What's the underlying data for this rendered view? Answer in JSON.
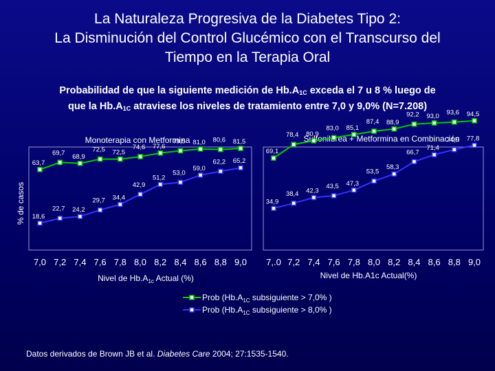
{
  "title": {
    "line1": "La Naturaleza Progresiva de la Diabetes Tipo 2:",
    "line2": "La Disminución del Control Glucémico con el Transcurso del",
    "line3": "Tiempo en la Terapia Oral"
  },
  "subtitle": {
    "p1": "Probabilidad de que la siguiente medición de Hb.A",
    "sub1": "1C",
    "p2": " exceda el 7 u 8 % luego de",
    "p3": "que la Hb.A",
    "sub2": "1C",
    "p4": " atraviese los niveles de tratamiento entre 7,0 y 9,0% (N=7.208)"
  },
  "ylabel": "% de casos",
  "legend": {
    "s1_pre": "Prob (Hb.A",
    "s1_sub": "1C",
    "s1_post": " subsiguiente > 7,0% )",
    "s2_pre": "Prob (Hb.A",
    "s2_sub": "1C",
    "s2_post": " subsiguiente > 8,0% )"
  },
  "footer": {
    "pre": "Datos derivados de Brown JB et al. ",
    "journal": "Diabetes Care",
    "post": " 2004; 27:1535-1540."
  },
  "colors": {
    "series1": "#00cc00",
    "series2": "#3333ff",
    "background": "#000066"
  },
  "chart_data": [
    {
      "type": "line",
      "title": "Monoterapia con Metformina",
      "xlabel_pre": "Nivel de Hb.A",
      "xlabel_sub": "1c",
      "xlabel_post": " Actual (%)",
      "ylabel": "% de casos",
      "categories": [
        "7,0",
        "7,2",
        "7,4",
        "7,6",
        "7,8",
        "8,0",
        "8,2",
        "8,4",
        "8,6",
        "8,8",
        "9,0"
      ],
      "series": [
        {
          "name": "Prob (Hb.A1C subsiguiente > 7,0% )",
          "values": [
            63.7,
            69.7,
            68.9,
            72.5,
            72.5,
            74.6,
            77.6,
            79.5,
            81.0,
            80.6,
            81.5
          ],
          "labels": [
            "63,7",
            "69,7",
            "68,9",
            "72,5",
            "72,5",
            "74,6",
            "77,6",
            "79,5",
            "81,0",
            "80,6",
            "81,5"
          ]
        },
        {
          "name": "Prob (Hb.A1C subsiguiente > 8,0% )",
          "values": [
            18.6,
            22.7,
            24.2,
            29.7,
            34.4,
            42.9,
            51.2,
            53.0,
            59.0,
            62.2,
            65.2
          ],
          "labels": [
            "18,6",
            "22,7",
            "24,2",
            "29,7",
            "34,4",
            "42,9",
            "51,2",
            "53,0",
            "59,0",
            "62,2",
            "65,2"
          ]
        }
      ],
      "ylim": [
        0,
        100
      ]
    },
    {
      "type": "line",
      "title": "Sulfonilurea + Metformina en Combinación",
      "xlabel": "Nivel de Hb.A1c Actual(%)",
      "categories": [
        "7,.0",
        "7,2",
        "7,4",
        "7,6",
        "7,8",
        "8,0",
        "8,2",
        "8,4",
        "8,6",
        "8,8",
        "9,0"
      ],
      "series": [
        {
          "name": "Prob (Hb.A1C subsiguiente > 7,0% )",
          "values": [
            69.1,
            78.4,
            80.9,
            83.0,
            85.1,
            87.4,
            88.9,
            92.2,
            93.0,
            93.6,
            94.5
          ],
          "labels": [
            "69,1",
            "78,4",
            "80,9",
            "83,0",
            "85,1",
            "87,4",
            "88,9",
            "92,2",
            "93,0",
            "93,6",
            "94,5"
          ]
        },
        {
          "name": "Prob (Hb.A1C subsiguiente > 8,0% )",
          "values": [
            34.9,
            38.4,
            42.3,
            43.5,
            47.3,
            53.5,
            58.3,
            66.7,
            71.4,
            74.9,
            77.8
          ],
          "labels": [
            "34,9",
            "38,4",
            "42,3",
            "43,5",
            "47,3",
            "53,5",
            "58,3",
            "66,7",
            "71,4",
            "74,9",
            "77,8"
          ]
        }
      ],
      "ylim": [
        0,
        100
      ]
    }
  ]
}
